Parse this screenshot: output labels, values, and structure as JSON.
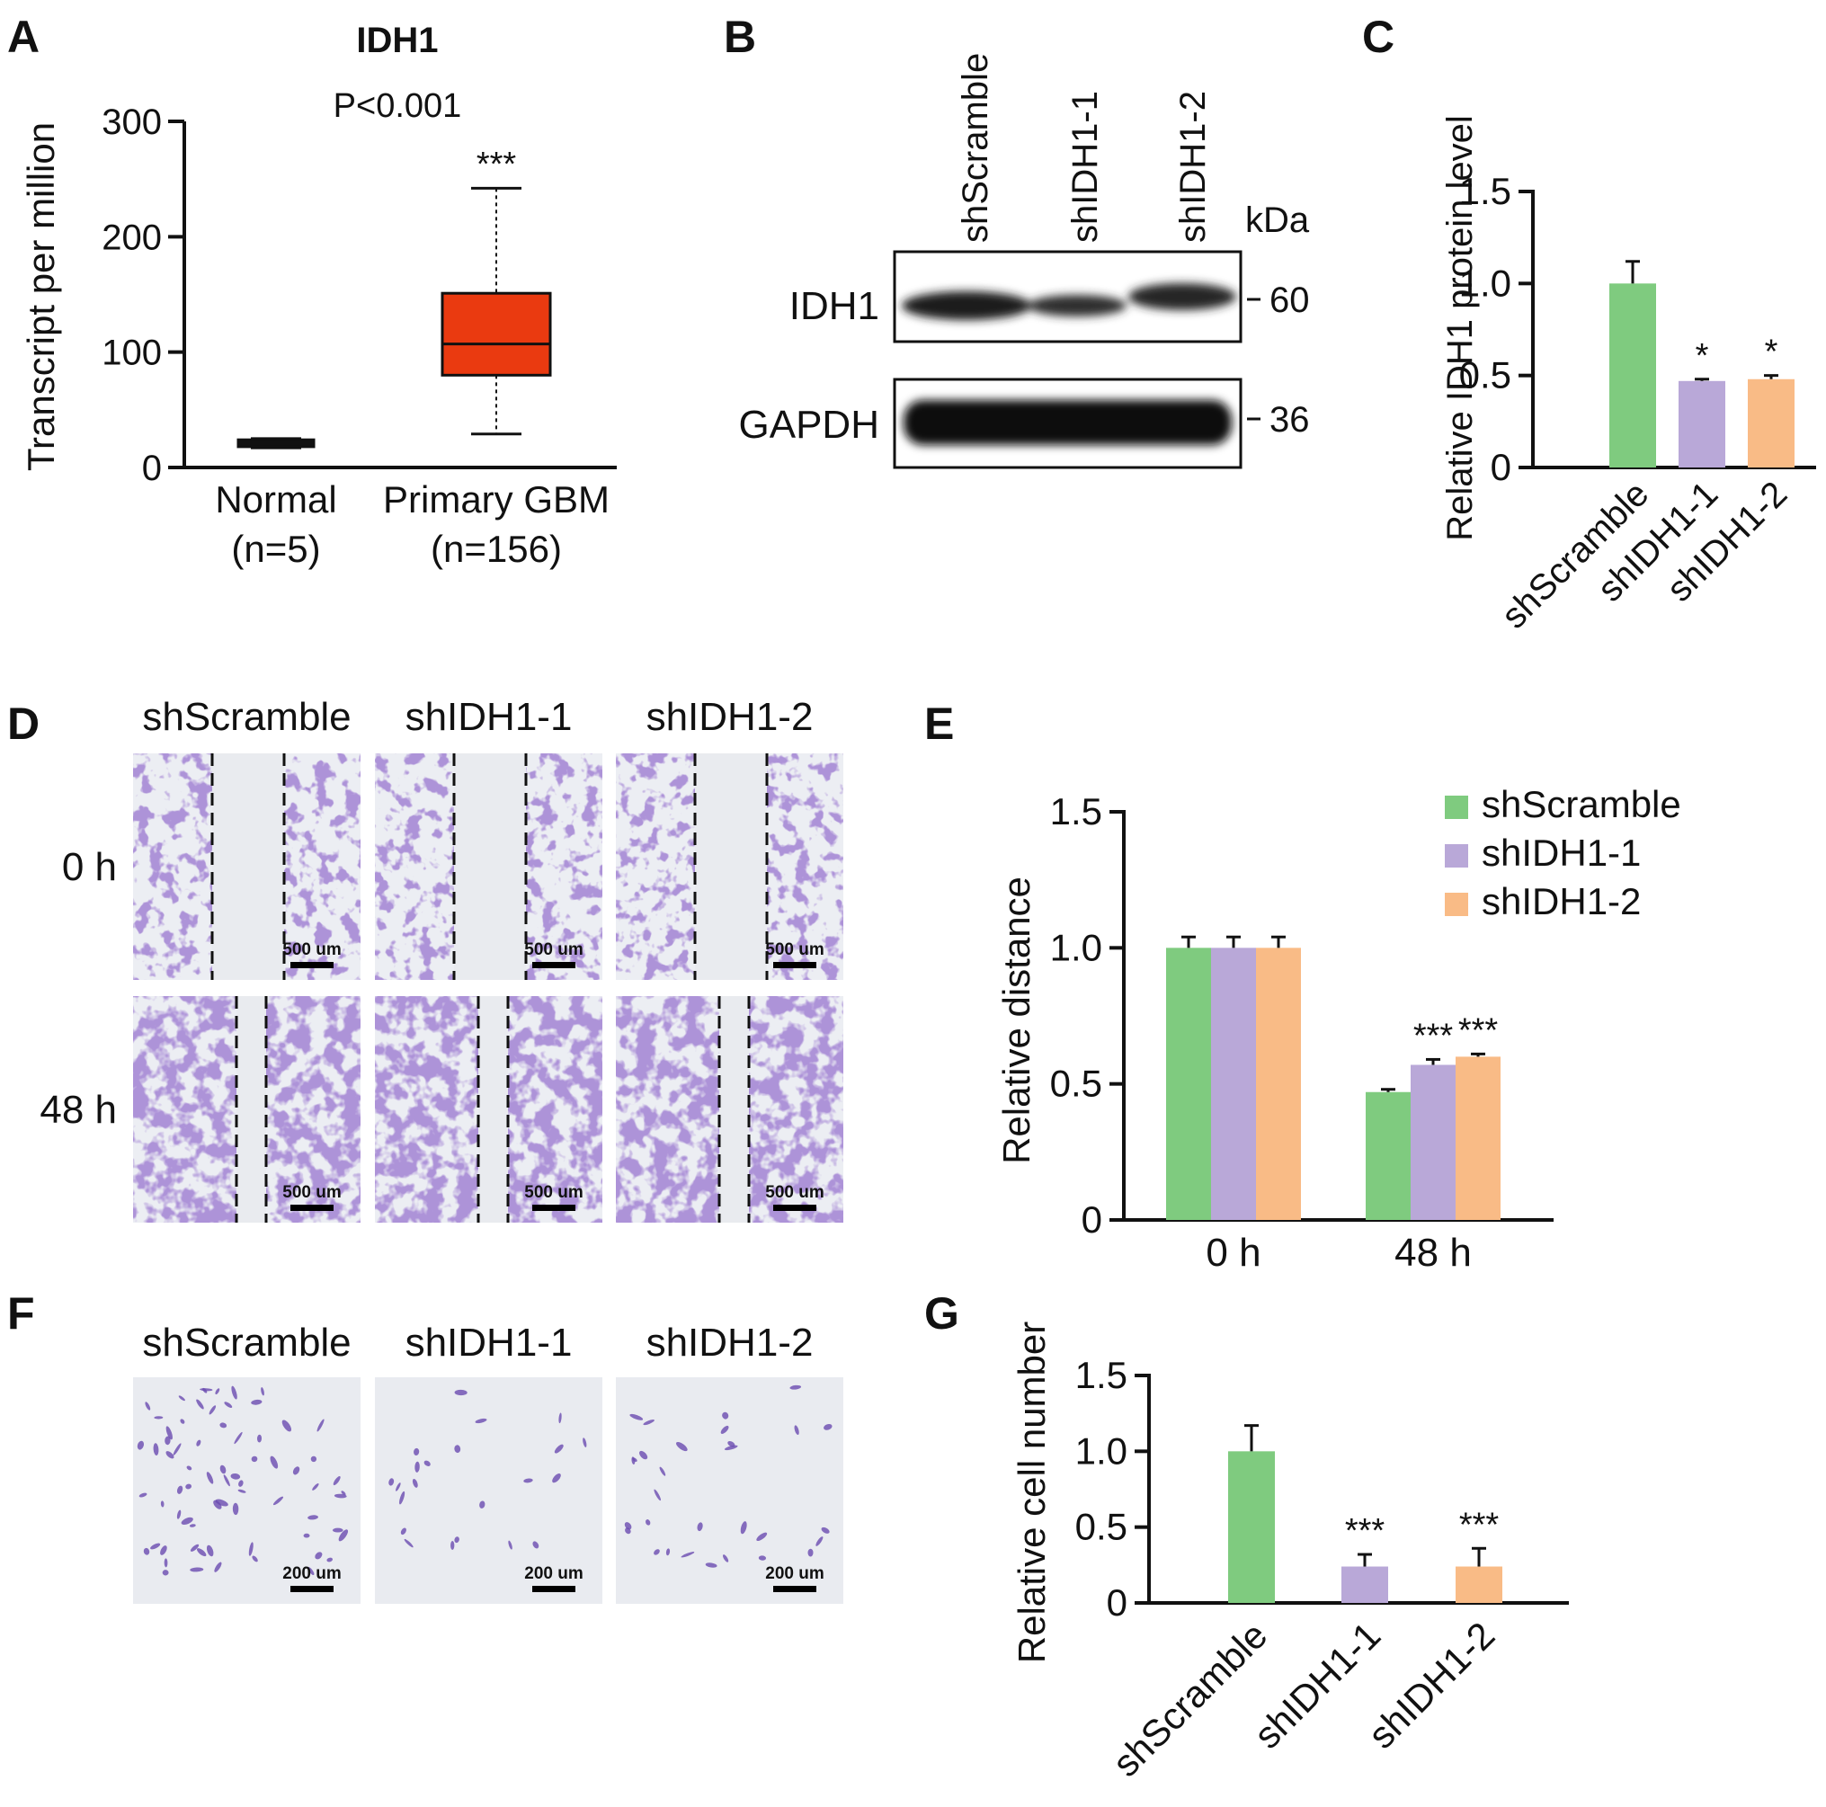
{
  "colors": {
    "green": "#7fcb7f",
    "purple": "#b9a8d8",
    "orange": "#f9bb86",
    "box_red": "#ea3a10",
    "stain": "#6a4bb0"
  },
  "panels": {
    "A": {
      "letter": "A",
      "title": "IDH1",
      "pvalue": "P<0.001",
      "significance": "***",
      "ylabel": "Transcript per million",
      "yticks": [
        "0",
        "100",
        "200",
        "300"
      ],
      "groups": [
        {
          "name": "Normal",
          "n": "(n=5)"
        },
        {
          "name": "Primary GBM",
          "n": "(n=156)"
        }
      ]
    },
    "B": {
      "letter": "B",
      "lanes": [
        "shScramble",
        "shIDH1-1",
        "shIDH1-2"
      ],
      "unit": "kDa",
      "rows": [
        {
          "label": "IDH1",
          "marker": "60"
        },
        {
          "label": "GAPDH",
          "marker": "36"
        }
      ]
    },
    "C": {
      "letter": "C",
      "ylabel": "Relative IDH1 protein level",
      "yticks": [
        "0",
        "0.5",
        "1.0",
        "1.5"
      ],
      "categories": [
        "shScramble",
        "shIDH1-1",
        "shIDH1-2"
      ],
      "stars": [
        "",
        "*",
        "*"
      ]
    },
    "D": {
      "letter": "D",
      "columns": [
        "shScramble",
        "shIDH1-1",
        "shIDH1-2"
      ],
      "rows": [
        "0 h",
        "48 h"
      ],
      "scalebar": "500 um"
    },
    "E": {
      "letter": "E",
      "ylabel": "Relative distance",
      "yticks": [
        "0",
        "0.5",
        "1.0",
        "1.5"
      ],
      "categories": [
        "0 h",
        "48 h"
      ],
      "series": [
        {
          "name": "shScramble"
        },
        {
          "name": "shIDH1-1"
        },
        {
          "name": "shIDH1-2"
        }
      ],
      "stars_48h": [
        "",
        "***",
        "***"
      ]
    },
    "F": {
      "letter": "F",
      "columns": [
        "shScramble",
        "shIDH1-1",
        "shIDH1-2"
      ],
      "scalebar": "200 um"
    },
    "G": {
      "letter": "G",
      "ylabel": "Relative cell number",
      "yticks": [
        "0",
        "0.5",
        "1.0",
        "1.5"
      ],
      "categories": [
        "shScramble",
        "shIDH1-1",
        "shIDH1-2"
      ],
      "stars": [
        "",
        "***",
        "***"
      ]
    }
  },
  "chart_data": [
    {
      "panel": "A",
      "type": "box",
      "title": "IDH1",
      "ylabel": "Transcript per million",
      "ylim": [
        0,
        300
      ],
      "categories": [
        "Normal",
        "Primary GBM"
      ],
      "boxes": [
        {
          "min": 17,
          "q1": 18,
          "median": 21,
          "q3": 24,
          "max": 25
        },
        {
          "min": 29,
          "q1": 80,
          "median": 107,
          "q3": 151,
          "max": 242
        }
      ]
    },
    {
      "panel": "C",
      "type": "bar",
      "ylabel": "Relative IDH1 protein level",
      "ylim": [
        0,
        1.5
      ],
      "categories": [
        "shScramble",
        "shIDH1-1",
        "shIDH1-2"
      ],
      "values": [
        1.0,
        0.47,
        0.48
      ],
      "errors": [
        0.12,
        0.01,
        0.02
      ]
    },
    {
      "panel": "E",
      "type": "bar",
      "ylabel": "Relative distance",
      "ylim": [
        0,
        1.5
      ],
      "categories": [
        "0 h",
        "48 h"
      ],
      "series": [
        {
          "name": "shScramble",
          "values": [
            1.0,
            0.47
          ],
          "errors": [
            0.04,
            0.01
          ]
        },
        {
          "name": "shIDH1-1",
          "values": [
            1.0,
            0.57
          ],
          "errors": [
            0.04,
            0.02
          ]
        },
        {
          "name": "shIDH1-2",
          "values": [
            1.0,
            0.6
          ],
          "errors": [
            0.04,
            0.01
          ]
        }
      ],
      "legend": "top-right"
    },
    {
      "panel": "G",
      "type": "bar",
      "ylabel": "Relative cell number",
      "ylim": [
        0,
        1.5
      ],
      "categories": [
        "shScramble",
        "shIDH1-1",
        "shIDH1-2"
      ],
      "values": [
        1.0,
        0.24,
        0.24
      ],
      "errors": [
        0.17,
        0.08,
        0.12
      ]
    }
  ]
}
